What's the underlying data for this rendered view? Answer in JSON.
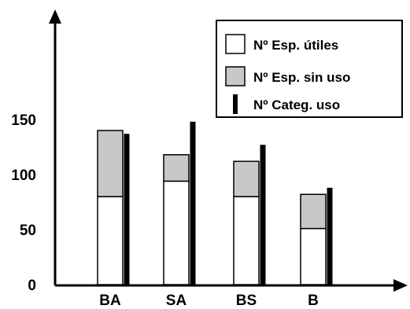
{
  "chart_data": {
    "type": "bar",
    "categories": [
      "BA",
      "SA",
      "BS",
      "B"
    ],
    "series": [
      {
        "name": "Nº Esp. útiles",
        "values": [
          80,
          94,
          80,
          51
        ],
        "color": "#ffffff",
        "kind": "stacked-bar"
      },
      {
        "name": "Nº Esp. sin uso",
        "values": [
          60,
          24,
          32,
          31
        ],
        "color": "#c8c8c8",
        "kind": "stacked-bar"
      },
      {
        "name": "Nº Categ. uso",
        "values": [
          137,
          148,
          127,
          88
        ],
        "color": "#000000",
        "kind": "thin-bar"
      }
    ],
    "yticks": [
      0,
      50,
      100,
      150
    ],
    "ylim": [
      0,
      200
    ],
    "grid": false,
    "legend": "top-right"
  }
}
